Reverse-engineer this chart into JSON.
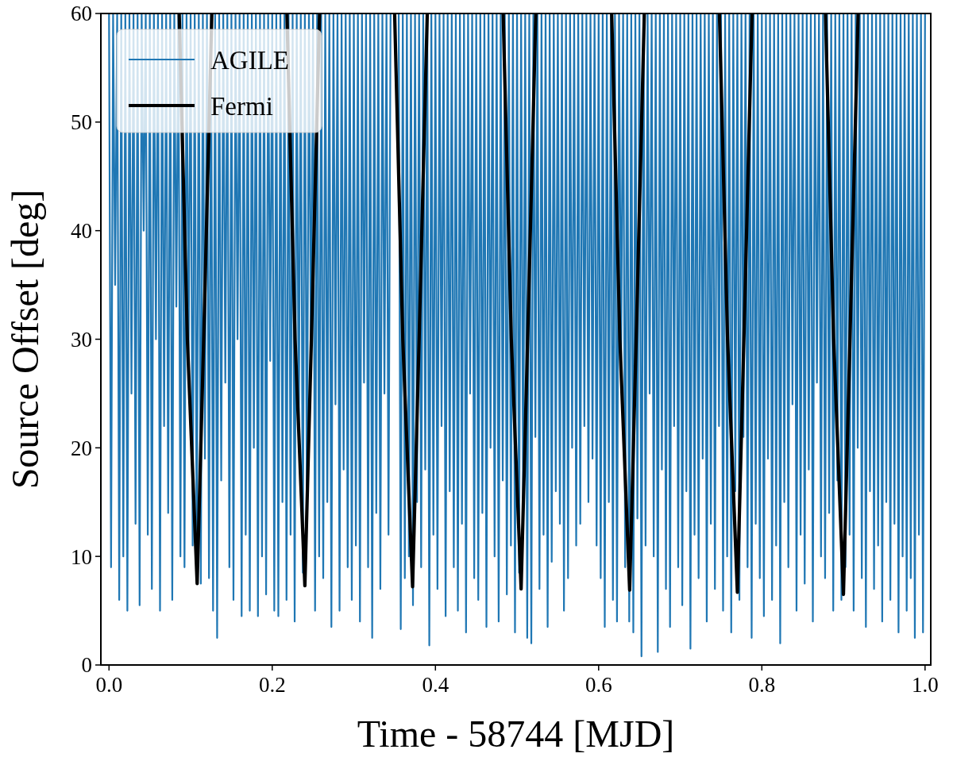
{
  "chart_data": {
    "type": "line",
    "xlabel": "Time - 58744 [MJD]",
    "ylabel": "Source Offset [deg]",
    "xlim": [
      -0.01,
      1.007
    ],
    "ylim": [
      0,
      60
    ],
    "xticks": [
      {
        "value": 0,
        "label": "0.0"
      },
      {
        "value": 0.2,
        "label": "0.2"
      },
      {
        "value": 0.4,
        "label": "0.4"
      },
      {
        "value": 0.6,
        "label": "0.6"
      },
      {
        "value": 0.8,
        "label": "0.8"
      },
      {
        "value": 1,
        "label": "1.0"
      }
    ],
    "yticks": [
      0,
      10,
      20,
      30,
      40,
      50,
      60
    ],
    "legend": "top left",
    "grid": false,
    "marker": "none",
    "line_style": "solid",
    "series": [
      {
        "name": "AGILE",
        "color": "#1f77b4",
        "x": [
          0,
          0.0025,
          0.005,
          0.0075,
          0.01,
          0.0125,
          0.015,
          0.0175,
          0.02,
          0.0225,
          0.025,
          0.0275,
          0.03,
          0.0325,
          0.035,
          0.0375,
          0.04,
          0.0425,
          0.045,
          0.0475,
          0.05,
          0.0525,
          0.055,
          0.0575,
          0.06,
          0.0625,
          0.065,
          0.0675,
          0.07,
          0.0725,
          0.075,
          0.0775,
          0.08,
          0.0825,
          0.085,
          0.0875,
          0.09,
          0.0925,
          0.095,
          0.0975,
          0.1,
          0.1025,
          0.105,
          0.1075,
          0.11,
          0.1125,
          0.115,
          0.1175,
          0.12,
          0.1225,
          0.125,
          0.1275,
          0.13,
          0.1325,
          0.135,
          0.1375,
          0.14,
          0.1425,
          0.145,
          0.1475,
          0.15,
          0.1525,
          0.155,
          0.1575,
          0.16,
          0.1625,
          0.165,
          0.1675,
          0.17,
          0.1725,
          0.175,
          0.1775,
          0.18,
          0.1825,
          0.185,
          0.1875,
          0.19,
          0.1925,
          0.195,
          0.1975,
          0.2,
          0.2025,
          0.205,
          0.2075,
          0.21,
          0.2125,
          0.215,
          0.2175,
          0.22,
          0.2225,
          0.225,
          0.2275,
          0.23,
          0.2325,
          0.235,
          0.2375,
          0.24,
          0.2425,
          0.245,
          0.2475,
          0.25,
          0.2525,
          0.255,
          0.2575,
          0.26,
          0.2625,
          0.265,
          0.2675,
          0.27,
          0.2725,
          0.275,
          0.2775,
          0.28,
          0.2825,
          0.285,
          0.2875,
          0.29,
          0.2925,
          0.295,
          0.2975,
          0.3,
          0.3025,
          0.305,
          0.3075,
          0.31,
          0.3125,
          0.315,
          0.3175,
          0.32,
          0.3225,
          0.325,
          0.3275,
          0.33,
          0.3325,
          0.335,
          0.3375,
          0.34,
          0.3425,
          0.345,
          0.3475,
          0.35,
          0.3525,
          0.355,
          0.3575,
          0.36,
          0.3625,
          0.365,
          0.3675,
          0.37,
          0.3725,
          0.375,
          0.3775,
          0.38,
          0.3825,
          0.385,
          0.3875,
          0.39,
          0.3925,
          0.395,
          0.3975,
          0.4,
          0.4025,
          0.405,
          0.4075,
          0.41,
          0.4125,
          0.415,
          0.4175,
          0.42,
          0.4225,
          0.425,
          0.4275,
          0.43,
          0.4325,
          0.435,
          0.4375,
          0.44,
          0.4425,
          0.445,
          0.4475,
          0.45,
          0.4525,
          0.455,
          0.4575,
          0.46,
          0.4625,
          0.465,
          0.4675,
          0.47,
          0.4725,
          0.475,
          0.4775,
          0.48,
          0.4825,
          0.485,
          0.4875,
          0.49,
          0.4925,
          0.495,
          0.4975,
          0.5,
          0.5025,
          0.505,
          0.5075,
          0.51,
          0.5125,
          0.515,
          0.5175,
          0.52,
          0.5225,
          0.525,
          0.5275,
          0.53,
          0.5325,
          0.535,
          0.5375,
          0.54,
          0.5425,
          0.545,
          0.5475,
          0.55,
          0.5525,
          0.555,
          0.5575,
          0.56,
          0.5625,
          0.565,
          0.5675,
          0.57,
          0.5725,
          0.575,
          0.5775,
          0.58,
          0.5825,
          0.585,
          0.5875,
          0.59,
          0.5925,
          0.595,
          0.5975,
          0.6,
          0.6025,
          0.605,
          0.6075,
          0.61,
          0.6125,
          0.615,
          0.6175,
          0.62,
          0.6225,
          0.625,
          0.6275,
          0.63,
          0.6325,
          0.635,
          0.6375,
          0.64,
          0.6425,
          0.645,
          0.6475,
          0.65,
          0.6525,
          0.655,
          0.6575,
          0.66,
          0.6625,
          0.665,
          0.6675,
          0.67,
          0.6725,
          0.675,
          0.6775,
          0.68,
          0.6825,
          0.685,
          0.6875,
          0.69,
          0.6925,
          0.695,
          0.6975,
          0.7,
          0.7025,
          0.705,
          0.7075,
          0.71,
          0.7125,
          0.715,
          0.7175,
          0.72,
          0.7225,
          0.725,
          0.7275,
          0.73,
          0.7325,
          0.735,
          0.7375,
          0.74,
          0.7425,
          0.745,
          0.7475,
          0.75,
          0.7525,
          0.755,
          0.7575,
          0.76,
          0.7625,
          0.765,
          0.7675,
          0.77,
          0.7725,
          0.775,
          0.7775,
          0.78,
          0.7825,
          0.785,
          0.7875,
          0.79,
          0.7925,
          0.795,
          0.7975,
          0.8,
          0.8025,
          0.805,
          0.8075,
          0.81,
          0.8125,
          0.815,
          0.8175,
          0.82,
          0.8225,
          0.825,
          0.8275,
          0.83,
          0.8325,
          0.835,
          0.8375,
          0.84,
          0.8425,
          0.845,
          0.8475,
          0.85,
          0.8525,
          0.855,
          0.8575,
          0.86,
          0.8625,
          0.865,
          0.8675,
          0.87,
          0.8725,
          0.875,
          0.8775,
          0.88,
          0.8825,
          0.885,
          0.8875,
          0.89,
          0.8925,
          0.895,
          0.8975,
          0.9,
          0.9025,
          0.905,
          0.9075,
          0.91,
          0.9125,
          0.915,
          0.9175,
          0.92,
          0.9225,
          0.925,
          0.9275,
          0.93,
          0.9325,
          0.935,
          0.9375,
          0.94,
          0.9425,
          0.945,
          0.9475,
          0.95,
          0.9525,
          0.955,
          0.9575,
          0.96,
          0.9625,
          0.965,
          0.9675,
          0.97,
          0.9725,
          0.975,
          0.9775,
          0.98,
          0.9825,
          0.985,
          0.9875,
          0.99,
          0.9925,
          0.995,
          0.9975,
          1
        ],
        "values": [
          60,
          9,
          60,
          35,
          60,
          6,
          60,
          10,
          60,
          5,
          60,
          25,
          60,
          13,
          60,
          5.5,
          60,
          40,
          60,
          12,
          60,
          7,
          60,
          30,
          60,
          5,
          60,
          22,
          60,
          14,
          60,
          6,
          60,
          33,
          60,
          10,
          60,
          9,
          60,
          28,
          60,
          11,
          60,
          8,
          60,
          7.5,
          60,
          19,
          60,
          8,
          60,
          5,
          60,
          2.5,
          60,
          17,
          60,
          26,
          60,
          9,
          60,
          6,
          60,
          30,
          60,
          4.5,
          60,
          12,
          60,
          5,
          60,
          20,
          60,
          4.5,
          60,
          10,
          60,
          6.5,
          60,
          28,
          60,
          5,
          60,
          4.5,
          60,
          15,
          60,
          6,
          60,
          12,
          60,
          4,
          60,
          20,
          60,
          8.5,
          60,
          13,
          60,
          27,
          60,
          5,
          60,
          10,
          60,
          8,
          60,
          15,
          60,
          3.5,
          60,
          24,
          60,
          5,
          60,
          18,
          60,
          9,
          60,
          6,
          60,
          11,
          60,
          4,
          60,
          26,
          60,
          9,
          60,
          2.5,
          60,
          14,
          60,
          7,
          60,
          25,
          60,
          12,
          60,
          null,
          null,
          null,
          60,
          3.3,
          60,
          8,
          60,
          10,
          60,
          5.5,
          60,
          15,
          60,
          9,
          60,
          18,
          60,
          1.8,
          60,
          12,
          60,
          7,
          60,
          22,
          60,
          4.5,
          60,
          16,
          60,
          9,
          60,
          5,
          60,
          13,
          60,
          3,
          60,
          25,
          60,
          8,
          60,
          6,
          60,
          14,
          60,
          3.5,
          60,
          20,
          60,
          10,
          60,
          4,
          60,
          17,
          60,
          6.5,
          60,
          11,
          60,
          3,
          60,
          8.5,
          60,
          14,
          60,
          2.5,
          60,
          2,
          60,
          21,
          60,
          7,
          60,
          12,
          60,
          3.5,
          60,
          9.5,
          60,
          16,
          60,
          13,
          60,
          5,
          60,
          8,
          60,
          20,
          60,
          11,
          60,
          13,
          60,
          22,
          60,
          15,
          60,
          19,
          60,
          11,
          60,
          8,
          60,
          3.5,
          60,
          15,
          60,
          6,
          60,
          4,
          60,
          27,
          60,
          9,
          60,
          4,
          60,
          3,
          60,
          13.5,
          60,
          0.8,
          60,
          11,
          60,
          25,
          60,
          10,
          60,
          1.2,
          60,
          18,
          60,
          7,
          60,
          3.5,
          60,
          22,
          60,
          9,
          60,
          5.5,
          60,
          16,
          60,
          1.5,
          60,
          12,
          60,
          8,
          60,
          19,
          60,
          4,
          60,
          13,
          60,
          7,
          60,
          22,
          60,
          5,
          60,
          10,
          60,
          3,
          60,
          16,
          60,
          6,
          60,
          21,
          60,
          9,
          60,
          2.5,
          60,
          13,
          60,
          8,
          60,
          4.5,
          60,
          19,
          60,
          6,
          60,
          11,
          60,
          2,
          60,
          15,
          60,
          9,
          60,
          24,
          60,
          5,
          60,
          12,
          60,
          7.5,
          60,
          18,
          60,
          4,
          60,
          26,
          60,
          10,
          60,
          8,
          60,
          14,
          60,
          5,
          60,
          17,
          60,
          6,
          60,
          9,
          60,
          12,
          60,
          5,
          60,
          20,
          60,
          8,
          60,
          3.5,
          60,
          16,
          60,
          7,
          60,
          11,
          60,
          4,
          60,
          15,
          60,
          6,
          60,
          13,
          60,
          3,
          60,
          10,
          60,
          5,
          60,
          8,
          60,
          2.5,
          60,
          12,
          60,
          3,
          60
        ]
      },
      {
        "name": "Fermi",
        "color": "#000000",
        "x": [
          0.086,
          0.096,
          0.108,
          0.116,
          0.126,
          0.13,
          0.218,
          0.228,
          0.24,
          0.248,
          0.258,
          0.262,
          0.35,
          0.36,
          0.372,
          0.38,
          0.39,
          0.395,
          0.483,
          0.493,
          0.505,
          0.513,
          0.523,
          0.528,
          0.616,
          0.626,
          0.638,
          0.646,
          0.656,
          0.66,
          0.748,
          0.758,
          0.77,
          0.778,
          0.788,
          0.792,
          0.878,
          0.888,
          0.9,
          0.908,
          0.918
        ],
        "values": [
          60,
          30,
          7.5,
          30,
          60,
          null,
          60,
          30,
          7.3,
          30,
          60,
          null,
          60,
          30,
          7.2,
          30,
          60,
          null,
          60,
          30,
          7,
          30,
          60,
          null,
          60,
          30,
          6.9,
          30,
          60,
          null,
          60,
          30,
          6.7,
          30,
          60,
          null,
          60,
          30,
          6.5,
          30,
          60
        ]
      }
    ]
  }
}
